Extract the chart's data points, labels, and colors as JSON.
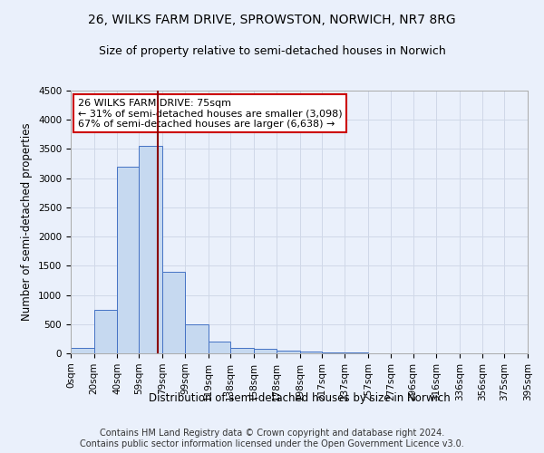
{
  "title": "26, WILKS FARM DRIVE, SPROWSTON, NORWICH, NR7 8RG",
  "subtitle": "Size of property relative to semi-detached houses in Norwich",
  "xlabel": "Distribution of semi-detached houses by size in Norwich",
  "ylabel": "Number of semi-detached properties",
  "footer_line1": "Contains HM Land Registry data © Crown copyright and database right 2024.",
  "footer_line2": "Contains public sector information licensed under the Open Government Licence v3.0.",
  "annotation_line1": "26 WILKS FARM DRIVE: 75sqm",
  "annotation_line2": "← 31% of semi-detached houses are smaller (3,098)",
  "annotation_line3": "67% of semi-detached houses are larger (6,638) →",
  "property_size": 75,
  "bin_edges": [
    0,
    20,
    40,
    59,
    79,
    99,
    119,
    138,
    158,
    178,
    198,
    217,
    237,
    257,
    277,
    296,
    316,
    336,
    356,
    375,
    395
  ],
  "bin_labels": [
    "0sqm",
    "20sqm",
    "40sqm",
    "59sqm",
    "79sqm",
    "99sqm",
    "119sqm",
    "138sqm",
    "158sqm",
    "178sqm",
    "198sqm",
    "217sqm",
    "237sqm",
    "257sqm",
    "277sqm",
    "296sqm",
    "316sqm",
    "336sqm",
    "356sqm",
    "375sqm",
    "395sqm"
  ],
  "bar_heights": [
    100,
    750,
    3200,
    3550,
    1400,
    500,
    200,
    100,
    75,
    50,
    25,
    15,
    15,
    5,
    3,
    2,
    1,
    0,
    0,
    0
  ],
  "bar_color": "#c6d9f0",
  "bar_edge_color": "#4472c4",
  "vline_color": "#8b0000",
  "vline_x": 75,
  "ylim": [
    0,
    4500
  ],
  "yticks": [
    0,
    500,
    1000,
    1500,
    2000,
    2500,
    3000,
    3500,
    4000,
    4500
  ],
  "grid_color": "#d0d8e8",
  "background_color": "#eaf0fb",
  "annotation_box_color": "#ffffff",
  "annotation_box_edge": "#cc0000",
  "title_fontsize": 10,
  "subtitle_fontsize": 9,
  "xlabel_fontsize": 8.5,
  "ylabel_fontsize": 8.5,
  "tick_fontsize": 7.5,
  "annotation_fontsize": 8,
  "footer_fontsize": 7
}
